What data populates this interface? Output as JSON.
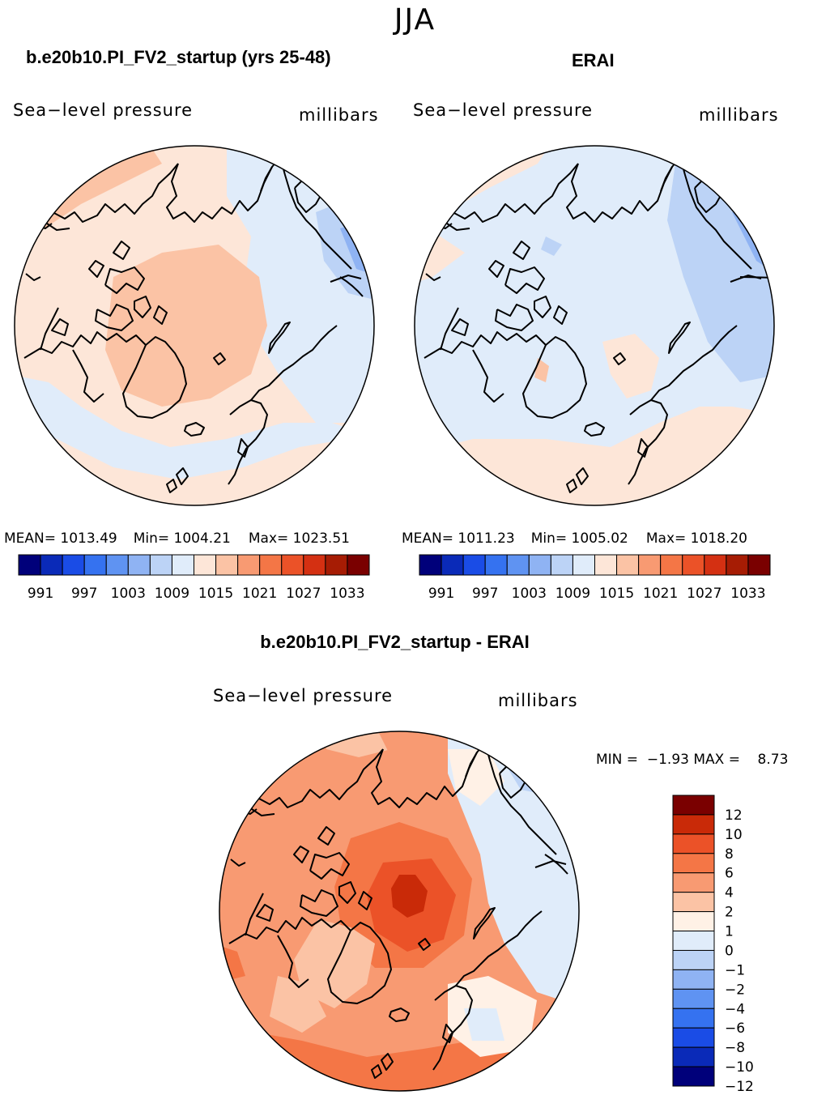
{
  "title": "JJA",
  "colors": {
    "abs": [
      "#00007a",
      "#0a2ab8",
      "#1a4ce6",
      "#3572f0",
      "#5f93f2",
      "#8fb3f3",
      "#bcd3f6",
      "#e0ecfa",
      "#fde6d8",
      "#fbc3a5",
      "#f89a72",
      "#f47646",
      "#eb5228",
      "#d43012",
      "#a61c04",
      "#7a0000"
    ],
    "diff": [
      "#00007a",
      "#0a2ab8",
      "#1a4ce6",
      "#3572f0",
      "#5f93f2",
      "#8fb3f3",
      "#bcd3f6",
      "#e0ecfa",
      "#fff1e6",
      "#fbc3a5",
      "#f89a72",
      "#f47646",
      "#eb5228",
      "#c92a08",
      "#7a0000"
    ]
  },
  "chart_data": [
    {
      "type": "heatmap",
      "panel": "model",
      "title": "b.e20b10.PI_FV2_startup (yrs 25-48)",
      "left_label": "Sea−level pressure",
      "right_label": "millibars",
      "stats": {
        "mean": "1013.49",
        "min": "1004.21",
        "max": "1023.51"
      },
      "stats_text": {
        "mean": "MEAN= ",
        "min": "Min= ",
        "max": "Max= "
      },
      "colorbar_ticks": [
        "991",
        "997",
        "1003",
        "1009",
        "1015",
        "1021",
        "1027",
        "1033"
      ],
      "field_levels": [
        {
          "level": 1009,
          "color_index": 7
        },
        {
          "level": 1015,
          "color_index": 8
        },
        {
          "level": 1021,
          "color_index": 9
        },
        {
          "level": 1027,
          "color_index": 10
        }
      ]
    },
    {
      "type": "heatmap",
      "panel": "obs",
      "title": "ERAI",
      "left_label": "Sea−level pressure",
      "right_label": "millibars",
      "stats": {
        "mean": "1011.23",
        "min": "1005.02",
        "max": "1018.20"
      },
      "stats_text": {
        "mean": "MEAN= ",
        "min": "Min= ",
        "max": "Max= "
      },
      "colorbar_ticks": [
        "991",
        "997",
        "1003",
        "1009",
        "1015",
        "1021",
        "1027",
        "1033"
      ],
      "field_levels": [
        {
          "level": 1003,
          "color_index": 6
        },
        {
          "level": 1009,
          "color_index": 7
        },
        {
          "level": 1015,
          "color_index": 8
        },
        {
          "level": 1021,
          "color_index": 9
        }
      ]
    },
    {
      "type": "heatmap",
      "panel": "difference",
      "title": "b.e20b10.PI_FV2_startup - ERAI",
      "left_label": "Sea−level pressure",
      "right_label": "millibars",
      "stats_text": "MIN =  −1.93 MAX =    8.73",
      "stats": {
        "min": -1.93,
        "max": 8.73
      },
      "colorbar_ticks": [
        "12",
        "10",
        "8",
        "6",
        "4",
        "2",
        "1",
        "0",
        "−1",
        "−2",
        "−4",
        "−6",
        "−8",
        "−10",
        "−12"
      ],
      "field_levels": [
        {
          "level": -2,
          "color_index": 6
        },
        {
          "level": -1,
          "color_index": 7
        },
        {
          "level": 0,
          "color_index": 8
        },
        {
          "level": 1,
          "color_index": 9
        },
        {
          "level": 2,
          "color_index": 10
        },
        {
          "level": 4,
          "color_index": 11
        },
        {
          "level": 6,
          "color_index": 12
        }
      ]
    }
  ]
}
